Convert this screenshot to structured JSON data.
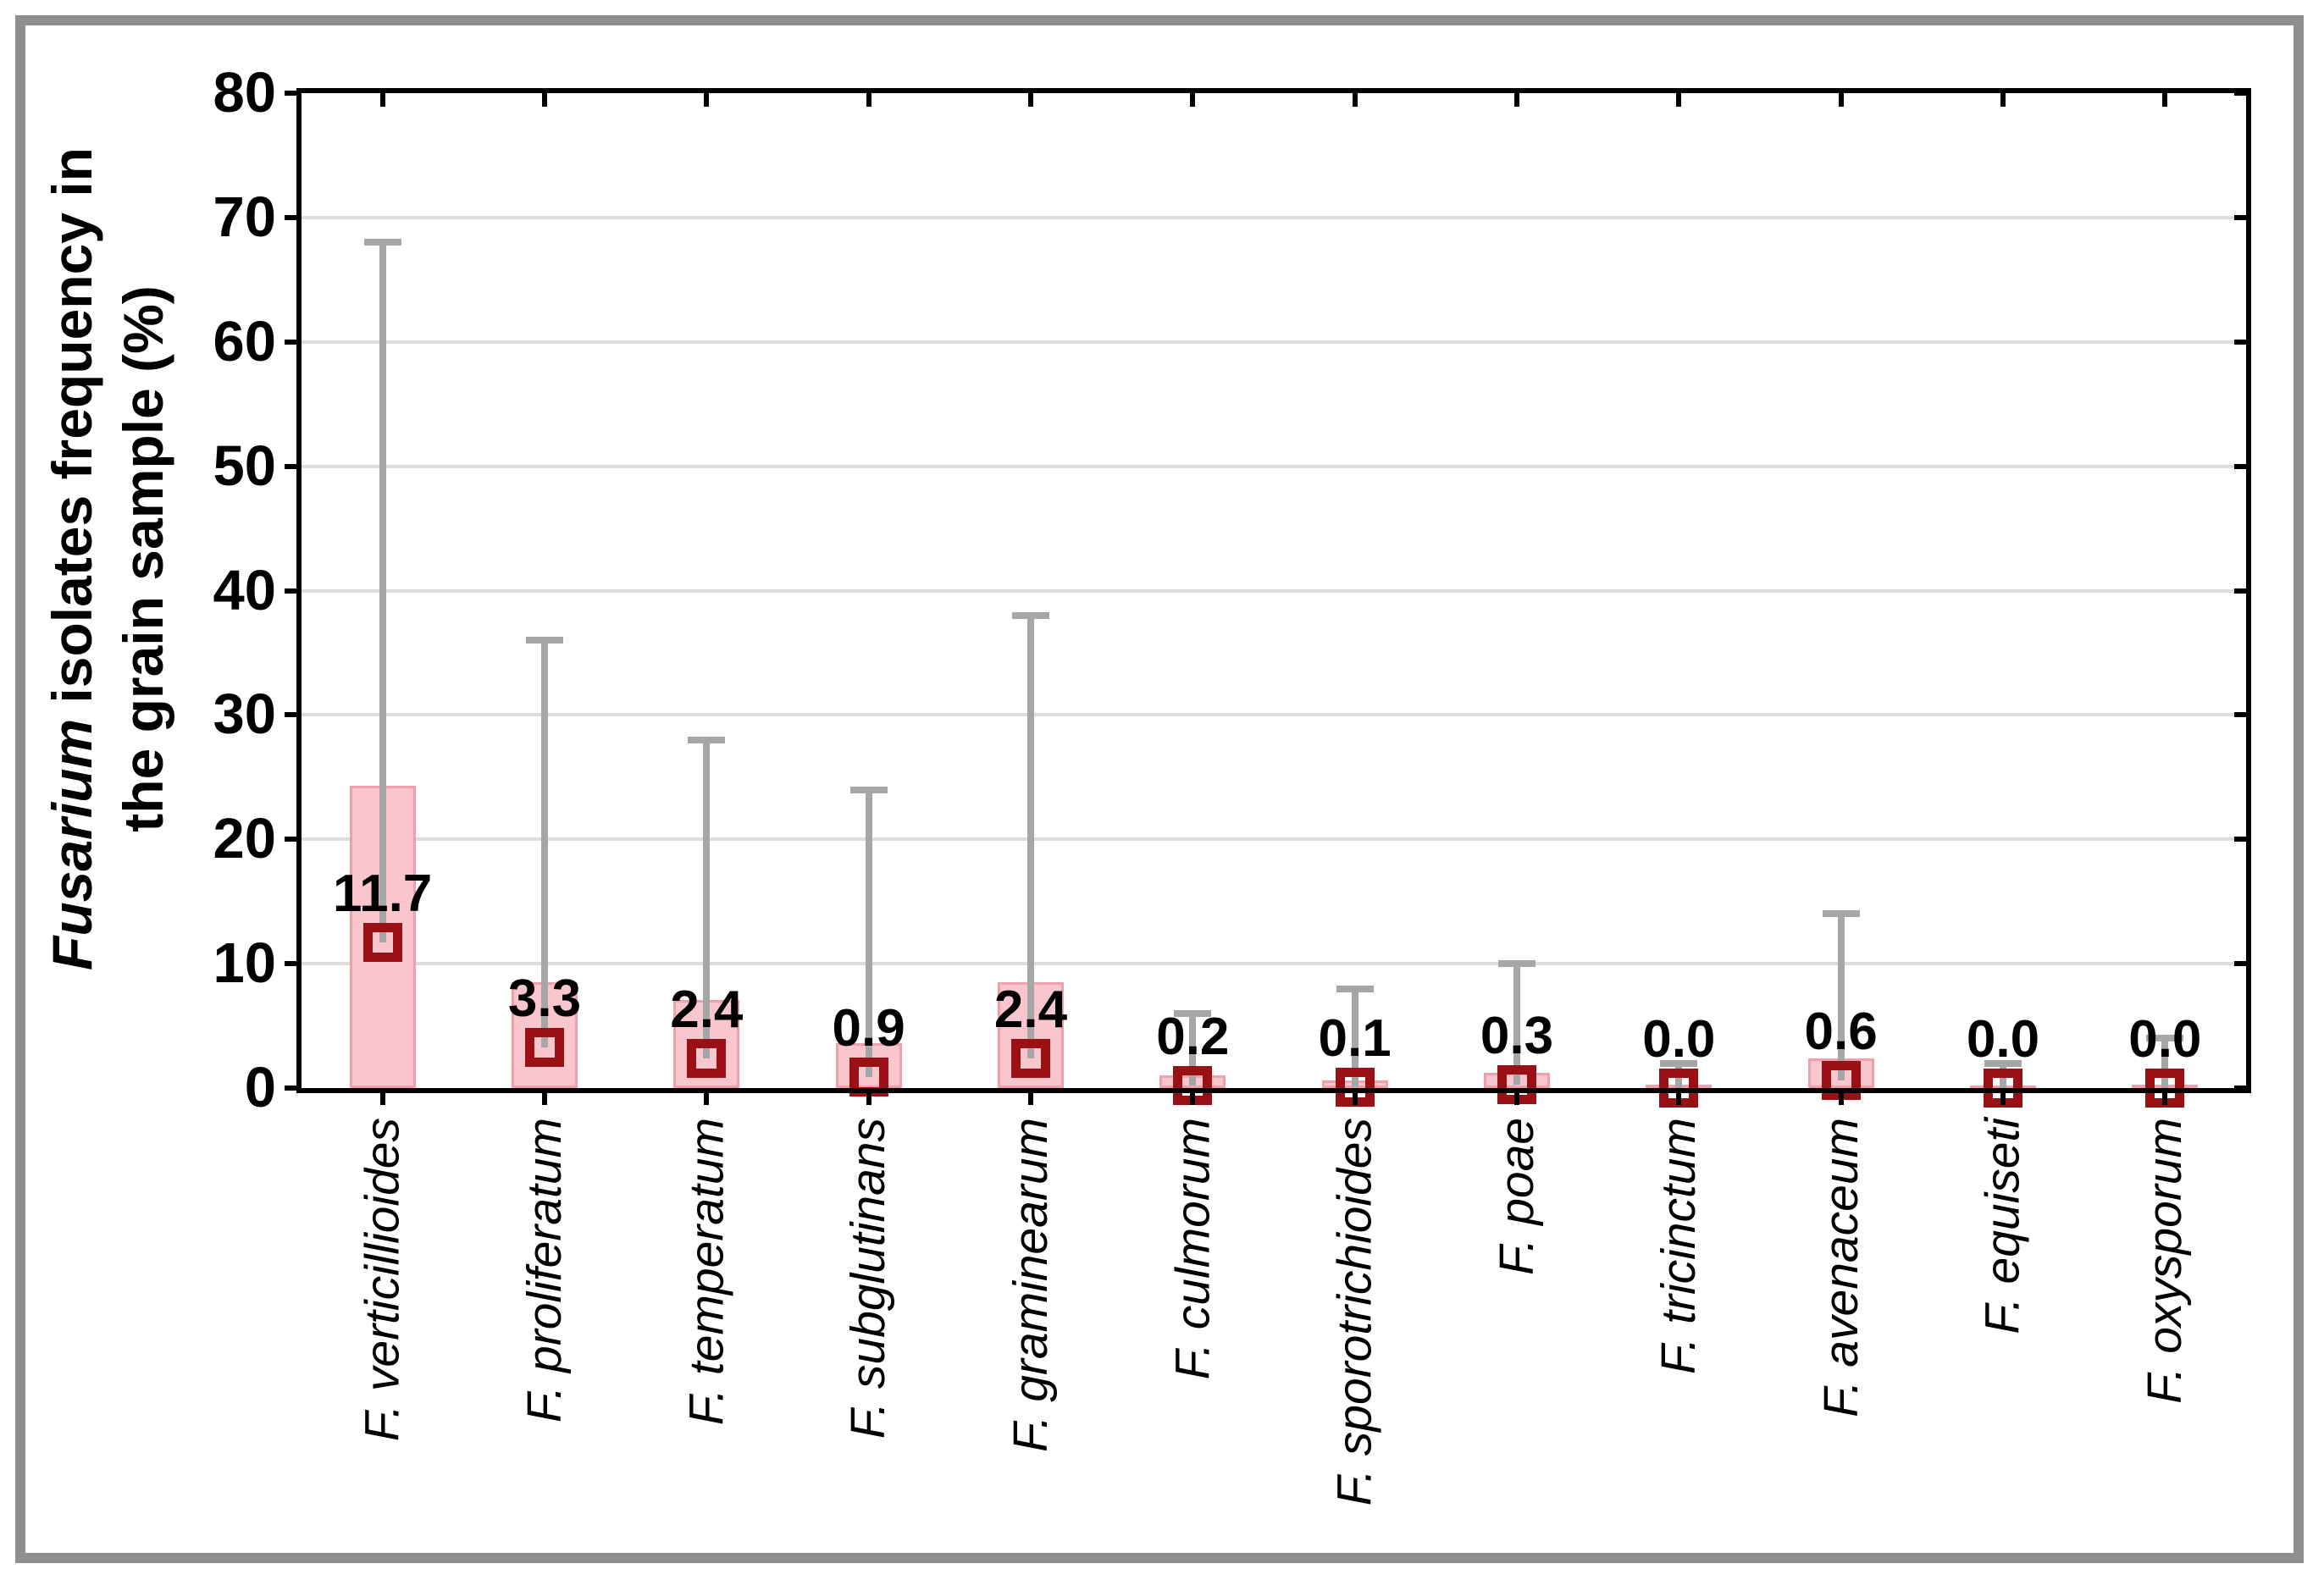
{
  "chart_data": {
    "type": "bar",
    "title": "",
    "categories": [
      "F. verticillioides",
      "F. proliferatum",
      "F. temperatum",
      "F. subglutinans",
      "F. graminearum",
      "F. culmorum",
      "F. sporotrichioides",
      "F. poae",
      "F. tricinctum",
      "F. avenaceum",
      "F. equiseti",
      "F. oxysporum"
    ],
    "series": [
      {
        "name": "mean",
        "values": [
          11.7,
          3.3,
          2.4,
          0.9,
          2.4,
          0.2,
          0.1,
          0.3,
          0.0,
          0.6,
          0.0,
          0.0
        ]
      },
      {
        "name": "bar_top",
        "values": [
          24.3,
          8.5,
          7.1,
          3.6,
          8.5,
          1.0,
          0.6,
          1.2,
          0.3,
          2.4,
          0.2,
          0.3
        ]
      },
      {
        "name": "whisker_max",
        "values": [
          68,
          36,
          28,
          24,
          38,
          6,
          8,
          10,
          2,
          14,
          2,
          4
        ]
      }
    ],
    "value_labels": [
      "11.7",
      "3.3",
      "2.4",
      "0.9",
      "2.4",
      "0.2",
      "0.1",
      "0.3",
      "0.0",
      "0.6",
      "0.0",
      "0.0"
    ],
    "xlabel": "",
    "ylabel": "Fusarium isolates frequency in the grain sample (%)",
    "ylim": [
      0,
      80
    ],
    "yticks": [
      0,
      10,
      20,
      30,
      40,
      50,
      60,
      70,
      80
    ],
    "grid": true,
    "legend": "none",
    "marker": "open-square"
  },
  "y_axis_title": {
    "italic_word": "Fusarium",
    "line1_rest": " isolates frequency in",
    "line2": "the grain sample (%)"
  },
  "colors": {
    "bar_fill": "#F9C6CE",
    "bar_border": "#EFA0AC",
    "marker": "#991114",
    "whisker": "#A6A6A6",
    "gridline": "#DDDDDD",
    "axis": "#000000",
    "frame": "#8F8F8F",
    "background": "#FFFFFF",
    "text": "#000000"
  }
}
